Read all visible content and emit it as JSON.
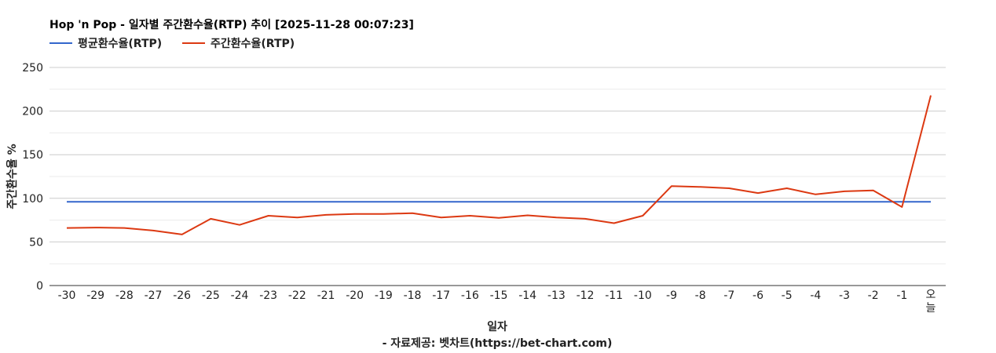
{
  "chart_data": {
    "type": "line",
    "title": "Hop 'n Pop - 일자별 주간환수율(RTP) 추이 [2025-11-28 00:07:23]",
    "xlabel": "일자",
    "ylabel": "주간환수율 %",
    "source": "- 자료제공: 벳차트(https://bet-chart.com)",
    "ylim": [
      0,
      250
    ],
    "yticks": [
      0,
      50,
      100,
      150,
      200,
      250
    ],
    "grid": true,
    "legend_position": "top-left",
    "categories": [
      "-30",
      "-29",
      "-28",
      "-27",
      "-26",
      "-25",
      "-24",
      "-23",
      "-22",
      "-21",
      "-20",
      "-19",
      "-18",
      "-17",
      "-16",
      "-15",
      "-14",
      "-13",
      "-12",
      "-11",
      "-10",
      "-9",
      "-8",
      "-7",
      "-6",
      "-5",
      "-4",
      "-3",
      "-2",
      "-1",
      "오늘"
    ],
    "series": [
      {
        "name": "평균환수율(RTP)",
        "color": "#3366cc",
        "values": [
          96,
          96,
          96,
          96,
          96,
          96,
          96,
          96,
          96,
          96,
          96,
          96,
          96,
          96,
          96,
          96,
          96,
          96,
          96,
          96,
          96,
          96,
          96,
          96,
          96,
          96,
          96,
          96,
          96,
          96,
          96
        ]
      },
      {
        "name": "주간환수율(RTP)",
        "color": "#dc3912",
        "values": [
          66,
          66.5,
          66,
          63,
          58.5,
          76.5,
          69.5,
          80,
          78,
          81,
          82,
          82,
          83,
          78,
          80,
          77.5,
          80.5,
          78,
          76.5,
          71.5,
          80,
          114,
          113,
          111.5,
          106,
          111.5,
          104.5,
          108,
          109,
          90,
          218
        ]
      }
    ]
  }
}
